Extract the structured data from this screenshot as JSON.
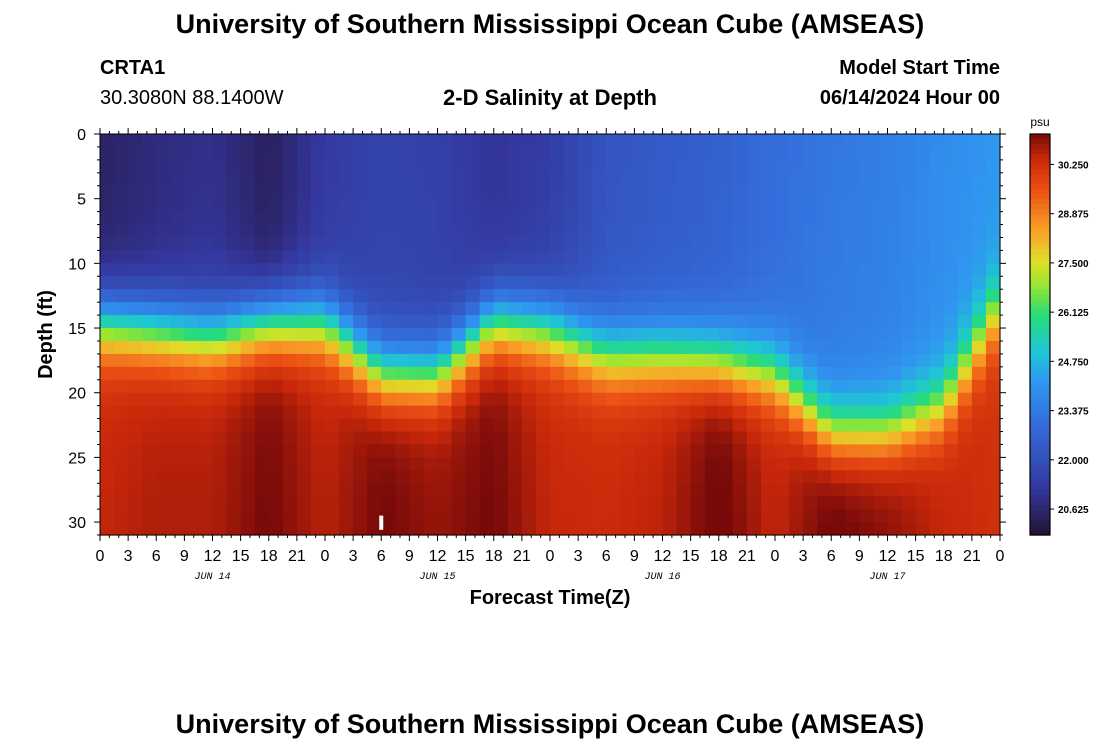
{
  "header": {
    "title": "University of Southern Mississippi Ocean Cube (AMSEAS)",
    "station": "CRTA1",
    "coords": "30.3080N  88.1400W",
    "subtitle": "2-D Salinity at Depth",
    "model_start_label": "Model Start Time",
    "model_start_value": "06/14/2024 Hour 00"
  },
  "footer": {
    "title": "University of Southern Mississippi Ocean Cube (AMSEAS)"
  },
  "chart_data": {
    "type": "heatmap",
    "title": "2-D Salinity at Depth",
    "xlabel": "Forecast Time(Z)",
    "ylabel": "Depth (ft)",
    "x_unit": "forecast hour",
    "xlim": [
      0,
      96
    ],
    "ylim": [
      0,
      31
    ],
    "y_inverted": true,
    "x_tick_labels": [
      "0",
      "3",
      "6",
      "9",
      "12",
      "15",
      "18",
      "21",
      "0",
      "3",
      "6",
      "9",
      "12",
      "15",
      "18",
      "21",
      "0",
      "3",
      "6",
      "9",
      "12",
      "15",
      "18",
      "21",
      "0",
      "3",
      "6",
      "9",
      "12",
      "15",
      "18",
      "21",
      "0"
    ],
    "x_tick_values": [
      0,
      3,
      6,
      9,
      12,
      15,
      18,
      21,
      24,
      27,
      30,
      33,
      36,
      39,
      42,
      45,
      48,
      51,
      54,
      57,
      60,
      63,
      66,
      69,
      72,
      75,
      78,
      81,
      84,
      87,
      90,
      93,
      96
    ],
    "date_labels": [
      {
        "label": "JUN 14",
        "hour": 12
      },
      {
        "label": "JUN 15",
        "hour": 36
      },
      {
        "label": "JUN 16",
        "hour": 60
      },
      {
        "label": "JUN 17",
        "hour": 84
      }
    ],
    "y_tick_labels": [
      "0",
      "5",
      "10",
      "15",
      "20",
      "25",
      "30"
    ],
    "y_tick_values": [
      0,
      5,
      10,
      15,
      20,
      25,
      30
    ],
    "colorbar": {
      "unit": "psu",
      "min": 19.9,
      "max": 31.1,
      "tick_labels": [
        "30.250",
        "28.875",
        "27.500",
        "26.125",
        "24.750",
        "23.375",
        "22.000",
        "20.625"
      ],
      "tick_values": [
        30.25,
        28.875,
        27.5,
        26.125,
        24.75,
        23.375,
        22.0,
        20.625
      ]
    },
    "halocline_depth_ft": {
      "hours": [
        0,
        12,
        18,
        24,
        30,
        36,
        42,
        48,
        54,
        60,
        66,
        72,
        78,
        84,
        90,
        96
      ],
      "depth": [
        14.5,
        15.5,
        14.5,
        14.5,
        18.5,
        18.5,
        14.5,
        15.0,
        17.0,
        17.0,
        17.5,
        18.5,
        23.0,
        23.0,
        21.0,
        13.0
      ]
    },
    "surface_salinity_psu": {
      "hours": [
        0,
        6,
        12,
        18,
        24,
        30,
        36,
        42,
        48,
        54,
        60,
        66,
        72,
        78,
        84,
        90,
        96
      ],
      "values": [
        20.5,
        20.8,
        21.0,
        20.4,
        21.3,
        21.6,
        21.5,
        21.1,
        21.4,
        22.2,
        22.4,
        22.6,
        23.0,
        23.3,
        23.5,
        23.9,
        24.2
      ]
    },
    "bottom_salinity_psu": {
      "hours": [
        0,
        6,
        12,
        18,
        24,
        30,
        36,
        42,
        48,
        54,
        60,
        66,
        72,
        78,
        84,
        90,
        96
      ],
      "values": [
        30.2,
        30.4,
        30.4,
        30.9,
        30.3,
        30.9,
        30.6,
        30.9,
        30.2,
        30.1,
        30.3,
        31.0,
        30.2,
        31.0,
        30.7,
        30.2,
        30.0
      ]
    }
  }
}
